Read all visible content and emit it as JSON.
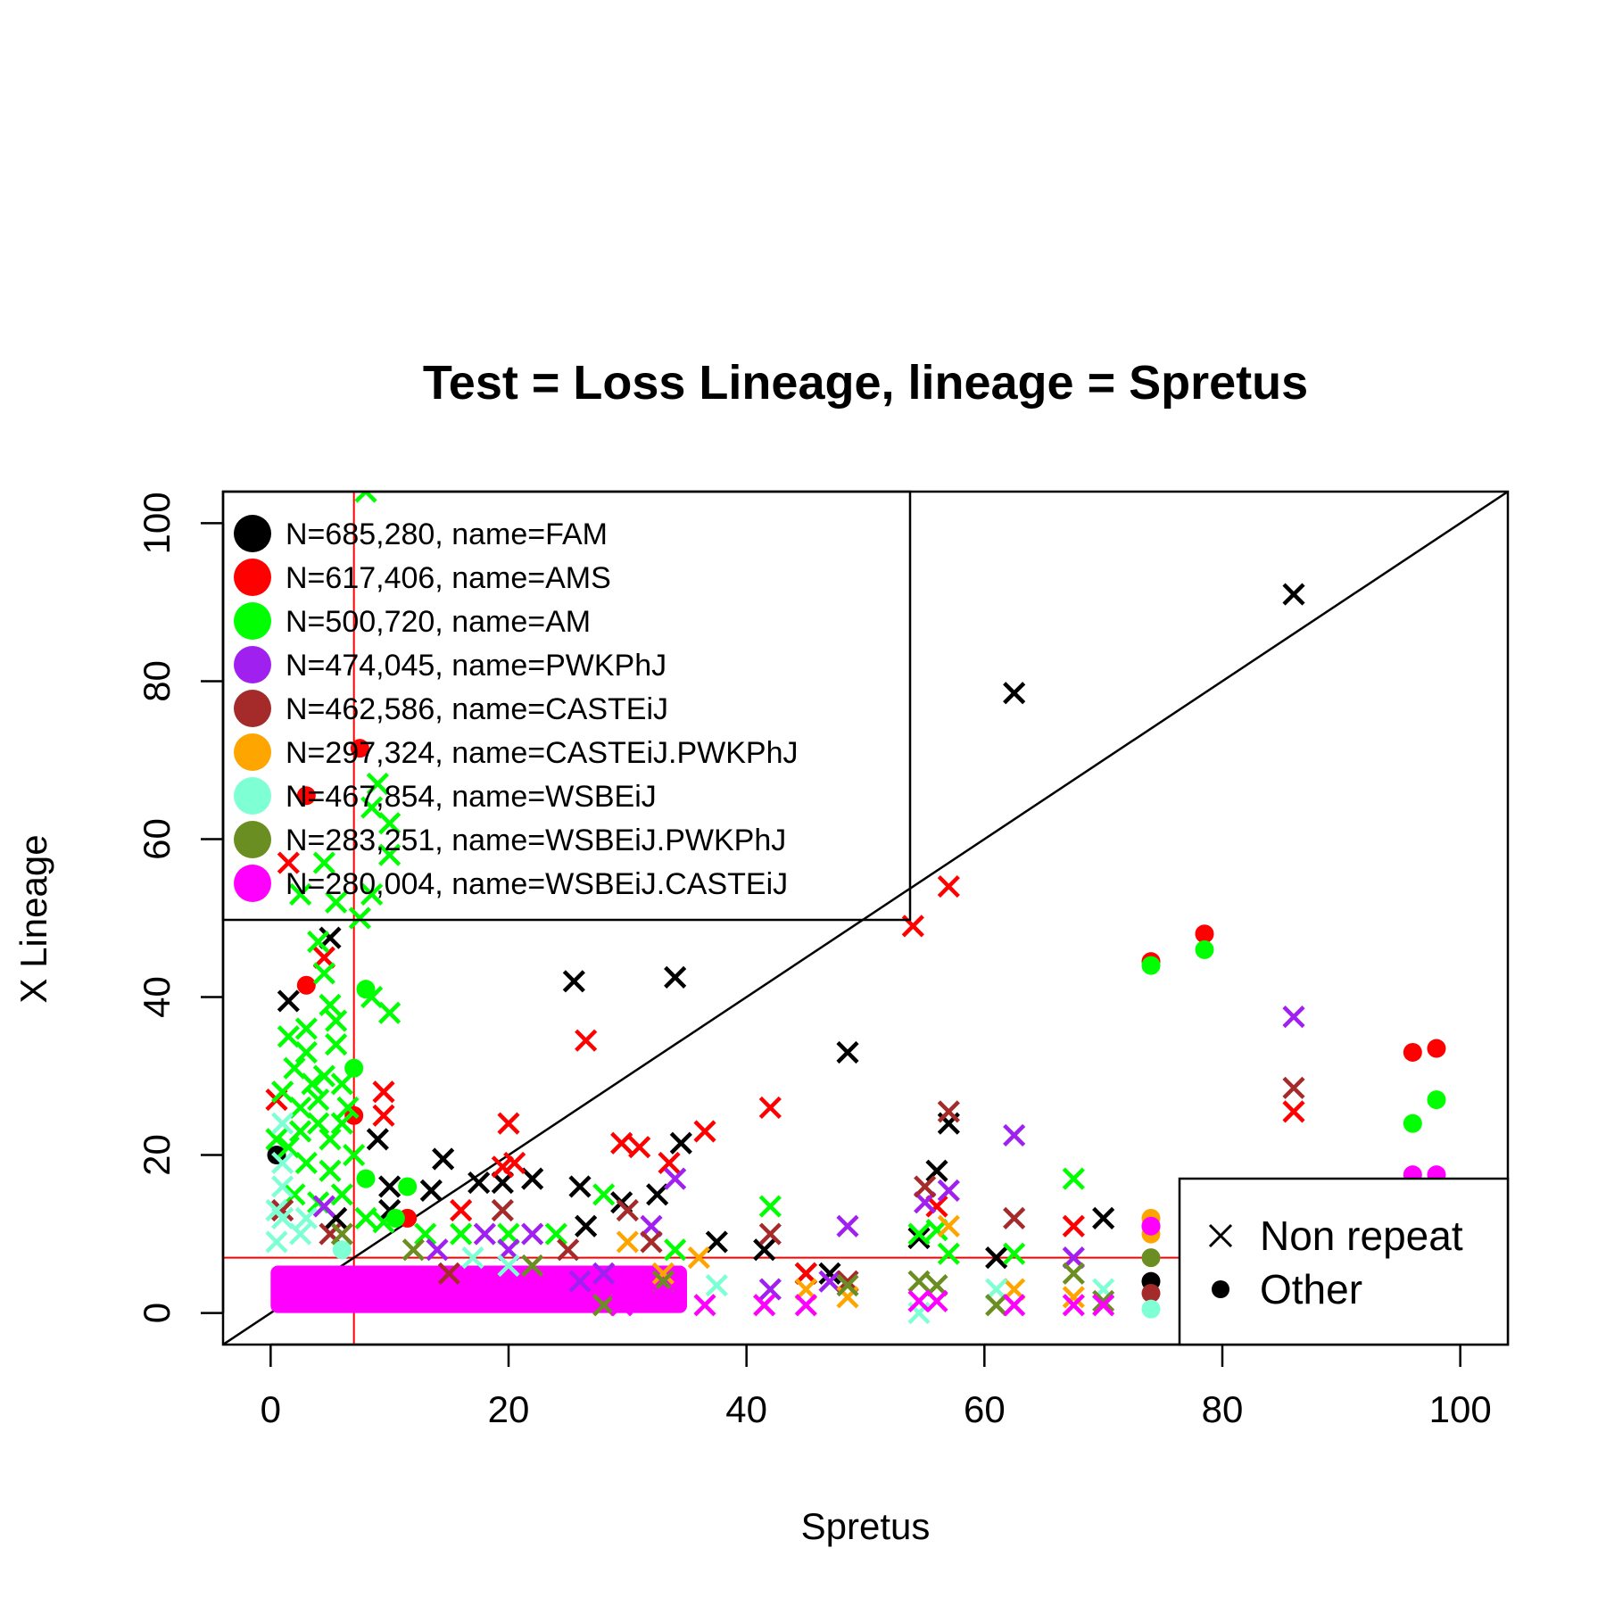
{
  "chart_data": {
    "type": "scatter",
    "title": "Test = Loss Lineage, lineage = Spretus",
    "xlabel": "Spretus",
    "ylabel": "X Lineage",
    "xlim": [
      -4,
      104
    ],
    "ylim": [
      -4,
      104
    ],
    "xticks": [
      0,
      20,
      40,
      60,
      80,
      100
    ],
    "yticks": [
      0,
      20,
      40,
      60,
      80,
      100
    ],
    "diagonal": true,
    "threshold_x": 7,
    "threshold_y": 7,
    "threshold_color": "#ff0000",
    "legend_position": "top-left",
    "shape_legend_position": "bottom-right",
    "series": [
      {
        "name": "N=685,280, name=FAM",
        "color": "#000000",
        "points": [
          [
            1.5,
            39.5,
            "x"
          ],
          [
            5,
            47.5,
            "x"
          ],
          [
            9,
            22,
            "x"
          ],
          [
            10,
            16,
            "x"
          ],
          [
            10,
            13,
            "x"
          ],
          [
            13.5,
            15.5,
            "x"
          ],
          [
            14.5,
            19.5,
            "x"
          ],
          [
            17.5,
            16.5,
            "x"
          ],
          [
            19.5,
            16.5,
            "x"
          ],
          [
            22,
            17,
            "x"
          ],
          [
            25.5,
            42,
            "x"
          ],
          [
            26,
            16,
            "x"
          ],
          [
            26.5,
            11,
            "x"
          ],
          [
            29.5,
            14,
            "x"
          ],
          [
            32.5,
            15,
            "x"
          ],
          [
            34,
            42.5,
            "x"
          ],
          [
            34.5,
            21.5,
            "x"
          ],
          [
            37.5,
            9,
            "x"
          ],
          [
            41.5,
            8,
            "x"
          ],
          [
            45,
            5,
            "x"
          ],
          [
            47,
            5,
            "x"
          ],
          [
            48.5,
            33,
            "x"
          ],
          [
            54.5,
            9.5,
            "x"
          ],
          [
            56,
            18,
            "x"
          ],
          [
            57,
            24,
            "x"
          ],
          [
            61,
            7,
            "x"
          ],
          [
            62.5,
            78.5,
            "x"
          ],
          [
            70,
            12,
            "x"
          ],
          [
            86,
            91,
            "x"
          ],
          [
            74,
            4,
            "o"
          ],
          [
            0.5,
            20,
            "o"
          ],
          [
            5.5,
            12,
            "x"
          ]
        ]
      },
      {
        "name": "N=617,406, name=AMS",
        "color": "#ff0000",
        "points": [
          [
            1.5,
            57,
            "x"
          ],
          [
            3,
            65.5,
            "o"
          ],
          [
            7.5,
            71.5,
            "o"
          ],
          [
            3,
            41.5,
            "o"
          ],
          [
            4.5,
            45,
            "x"
          ],
          [
            7,
            25,
            "o"
          ],
          [
            9.5,
            28,
            "x"
          ],
          [
            9.5,
            25,
            "x"
          ],
          [
            16,
            13,
            "x"
          ],
          [
            20,
            24,
            "x"
          ],
          [
            19.5,
            18.5,
            "x"
          ],
          [
            20.5,
            19,
            "x"
          ],
          [
            26.5,
            34.5,
            "x"
          ],
          [
            29.5,
            21.5,
            "x"
          ],
          [
            31,
            21,
            "x"
          ],
          [
            33.5,
            19,
            "x"
          ],
          [
            36.5,
            23,
            "x"
          ],
          [
            42,
            26,
            "x"
          ],
          [
            45,
            5,
            "x"
          ],
          [
            54,
            49,
            "x"
          ],
          [
            56,
            13.5,
            "x"
          ],
          [
            57,
            54,
            "x"
          ],
          [
            67.5,
            11,
            "x"
          ],
          [
            74,
            44.5,
            "o"
          ],
          [
            78.5,
            48,
            "o"
          ],
          [
            86,
            25.5,
            "x"
          ],
          [
            96,
            33,
            "o"
          ],
          [
            98,
            33.5,
            "o"
          ],
          [
            11.5,
            12,
            "o"
          ],
          [
            0.5,
            27,
            "x"
          ]
        ]
      },
      {
        "name": "N=500,720, name=AM",
        "color": "#00ff00",
        "points": [
          [
            8,
            104,
            "x"
          ],
          [
            10,
            62,
            "x"
          ],
          [
            8.5,
            64,
            "x"
          ],
          [
            9,
            67,
            "x"
          ],
          [
            10,
            58,
            "x"
          ],
          [
            2.5,
            53,
            "x"
          ],
          [
            4.5,
            57,
            "x"
          ],
          [
            5.5,
            52,
            "x"
          ],
          [
            7.5,
            50,
            "x"
          ],
          [
            8.5,
            53,
            "x"
          ],
          [
            4,
            47,
            "x"
          ],
          [
            4.5,
            43,
            "x"
          ],
          [
            5,
            39,
            "x"
          ],
          [
            5.5,
            37,
            "x"
          ],
          [
            8,
            41,
            "o"
          ],
          [
            8.5,
            40,
            "x"
          ],
          [
            10,
            38,
            "x"
          ],
          [
            1.5,
            35,
            "x"
          ],
          [
            3,
            33,
            "x"
          ],
          [
            2,
            31,
            "x"
          ],
          [
            3.5,
            29,
            "x"
          ],
          [
            4.5,
            30,
            "x"
          ],
          [
            6,
            29,
            "x"
          ],
          [
            7,
            31,
            "o"
          ],
          [
            1,
            28,
            "x"
          ],
          [
            2.5,
            26,
            "x"
          ],
          [
            4,
            24,
            "x"
          ],
          [
            5,
            22,
            "x"
          ],
          [
            6,
            24,
            "x"
          ],
          [
            1.5,
            21,
            "x"
          ],
          [
            3,
            19,
            "x"
          ],
          [
            5,
            18,
            "x"
          ],
          [
            7,
            20,
            "x"
          ],
          [
            8,
            17,
            "o"
          ],
          [
            2,
            15,
            "x"
          ],
          [
            4,
            14,
            "x"
          ],
          [
            6,
            15,
            "x"
          ],
          [
            8,
            12,
            "x"
          ],
          [
            9.5,
            11.5,
            "x"
          ],
          [
            10.5,
            12,
            "o"
          ],
          [
            11.5,
            16,
            "o"
          ],
          [
            13,
            10,
            "x"
          ],
          [
            16,
            10,
            "x"
          ],
          [
            20,
            10,
            "x"
          ],
          [
            24,
            10,
            "x"
          ],
          [
            28,
            15,
            "x"
          ],
          [
            34,
            8,
            "x"
          ],
          [
            42,
            13.5,
            "x"
          ],
          [
            54.5,
            10,
            "x"
          ],
          [
            56,
            10.5,
            "x"
          ],
          [
            57,
            7.5,
            "x"
          ],
          [
            62.5,
            7.5,
            "x"
          ],
          [
            67.5,
            17,
            "x"
          ],
          [
            74,
            44,
            "o"
          ],
          [
            78.5,
            46,
            "o"
          ],
          [
            96,
            24,
            "o"
          ],
          [
            98,
            27,
            "o"
          ],
          [
            0.5,
            22,
            "x"
          ],
          [
            2.5,
            23,
            "x"
          ],
          [
            4,
            27,
            "x"
          ],
          [
            6.5,
            26,
            "x"
          ],
          [
            3,
            36,
            "x"
          ],
          [
            5.5,
            34,
            "x"
          ]
        ]
      },
      {
        "name": "N=474,045, name=PWKPhJ",
        "color": "#a020f0",
        "points": [
          [
            4.5,
            13.5,
            "x"
          ],
          [
            18,
            10,
            "x"
          ],
          [
            20,
            8,
            "x"
          ],
          [
            22,
            10,
            "x"
          ],
          [
            28,
            5,
            "x"
          ],
          [
            32,
            11,
            "x"
          ],
          [
            34,
            17,
            "x"
          ],
          [
            42,
            3,
            "x"
          ],
          [
            47,
            4,
            "x"
          ],
          [
            48.5,
            11,
            "x"
          ],
          [
            55,
            14,
            "x"
          ],
          [
            57,
            15.5,
            "x"
          ],
          [
            62.5,
            22.5,
            "x"
          ],
          [
            67.5,
            7,
            "x"
          ],
          [
            74,
            11,
            "o"
          ],
          [
            86,
            37.5,
            "x"
          ],
          [
            14,
            8,
            "x"
          ],
          [
            26,
            4,
            "x"
          ]
        ]
      },
      {
        "name": "N=462,586, name=CASTEiJ",
        "color": "#a52a2a",
        "points": [
          [
            1,
            13,
            "x"
          ],
          [
            5,
            10,
            "x"
          ],
          [
            19.5,
            13,
            "x"
          ],
          [
            25,
            8,
            "x"
          ],
          [
            32,
            9,
            "x"
          ],
          [
            42,
            10,
            "x"
          ],
          [
            48.5,
            4,
            "x"
          ],
          [
            55,
            16,
            "x"
          ],
          [
            57,
            25.5,
            "x"
          ],
          [
            62.5,
            12,
            "x"
          ],
          [
            74,
            2.5,
            "o"
          ],
          [
            86,
            28.5,
            "x"
          ],
          [
            15,
            5,
            "x"
          ],
          [
            30,
            13,
            "x"
          ]
        ]
      },
      {
        "name": "N=297,324, name=CASTEiJ.PWKPhJ",
        "color": "#ffa500",
        "points": [
          [
            30,
            9,
            "x"
          ],
          [
            36,
            7,
            "x"
          ],
          [
            45,
            3,
            "x"
          ],
          [
            48.5,
            2,
            "x"
          ],
          [
            57,
            11,
            "x"
          ],
          [
            62.5,
            3,
            "x"
          ],
          [
            67.5,
            2,
            "x"
          ],
          [
            74,
            12,
            "o"
          ],
          [
            74,
            10,
            "o"
          ],
          [
            33,
            5,
            "x"
          ]
        ]
      },
      {
        "name": "N=467,854, name=WSBEiJ",
        "color": "#7fffd4",
        "points": [
          [
            1,
            24,
            "x"
          ],
          [
            1,
            19,
            "x"
          ],
          [
            1,
            16,
            "x"
          ],
          [
            1,
            12,
            "x"
          ],
          [
            2.5,
            10,
            "x"
          ],
          [
            0.5,
            9,
            "x"
          ],
          [
            6,
            8,
            "o"
          ],
          [
            17,
            7,
            "x"
          ],
          [
            20,
            6,
            "x"
          ],
          [
            37.5,
            3.5,
            "x"
          ],
          [
            54.5,
            0,
            "x"
          ],
          [
            61,
            3,
            "x"
          ],
          [
            70,
            3,
            "x"
          ],
          [
            74,
            0.5,
            "o"
          ],
          [
            3,
            12,
            "x"
          ],
          [
            0.5,
            13,
            "x"
          ]
        ]
      },
      {
        "name": "N=283,251, name=WSBEiJ.PWKPhJ",
        "color": "#6b8e23",
        "points": [
          [
            6,
            10,
            "x"
          ],
          [
            12,
            8,
            "x"
          ],
          [
            28,
            1,
            "x"
          ],
          [
            33,
            4,
            "x"
          ],
          [
            48.5,
            3.5,
            "x"
          ],
          [
            54.5,
            4,
            "x"
          ],
          [
            56,
            3.5,
            "x"
          ],
          [
            61,
            1,
            "x"
          ],
          [
            67.5,
            5,
            "x"
          ],
          [
            70,
            1.5,
            "x"
          ],
          [
            74,
            7,
            "o"
          ],
          [
            22,
            6,
            "x"
          ]
        ]
      },
      {
        "name": "N=280,004, name=WSBEiJ.CASTEiJ",
        "color": "#ff00ff",
        "points": [
          [
            29.5,
            1,
            "x"
          ],
          [
            33,
            2,
            "x"
          ],
          [
            36.5,
            1,
            "x"
          ],
          [
            41.5,
            1,
            "x"
          ],
          [
            45,
            1,
            "x"
          ],
          [
            54.5,
            1.5,
            "x"
          ],
          [
            56,
            1.5,
            "x"
          ],
          [
            62.5,
            1,
            "x"
          ],
          [
            67.5,
            1,
            "x"
          ],
          [
            70,
            1,
            "x"
          ],
          [
            74,
            11,
            "o"
          ],
          [
            96,
            17.5,
            "o"
          ],
          [
            98,
            17.5,
            "o"
          ]
        ]
      }
    ],
    "dense_clusters": [
      {
        "color": "#ff00ff",
        "x0": 0,
        "x1": 35,
        "y0": 0,
        "y1": 6
      }
    ],
    "shape_legend": [
      {
        "label": "Non repeat",
        "symbol": "x"
      },
      {
        "label": "Other",
        "symbol": "o"
      }
    ]
  }
}
